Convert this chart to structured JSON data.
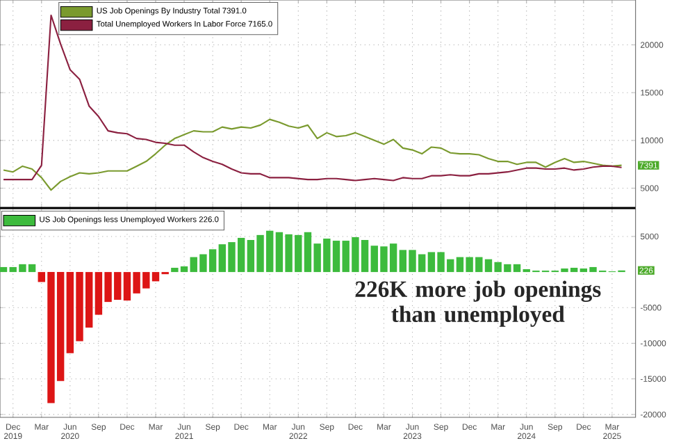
{
  "chart_data": [
    {
      "type": "line",
      "x": [
        "2019-11",
        "2019-12",
        "2020-01",
        "2020-02",
        "2020-03",
        "2020-04",
        "2020-05",
        "2020-06",
        "2020-07",
        "2020-08",
        "2020-09",
        "2020-10",
        "2020-11",
        "2020-12",
        "2021-01",
        "2021-02",
        "2021-03",
        "2021-04",
        "2021-05",
        "2021-06",
        "2021-07",
        "2021-08",
        "2021-09",
        "2021-10",
        "2021-11",
        "2021-12",
        "2022-01",
        "2022-02",
        "2022-03",
        "2022-04",
        "2022-05",
        "2022-06",
        "2022-07",
        "2022-08",
        "2022-09",
        "2022-10",
        "2022-11",
        "2022-12",
        "2023-01",
        "2023-02",
        "2023-03",
        "2023-04",
        "2023-05",
        "2023-06",
        "2023-07",
        "2023-08",
        "2023-09",
        "2023-10",
        "2023-11",
        "2023-12",
        "2024-01",
        "2024-02",
        "2024-03",
        "2024-04",
        "2024-05",
        "2024-06",
        "2024-07",
        "2024-08",
        "2024-09",
        "2024-10",
        "2024-11",
        "2024-12",
        "2025-01",
        "2025-02",
        "2025-03",
        "2025-04"
      ],
      "series": [
        {
          "name": "US Job Openings By Industry Total 7391.0",
          "color": "#7a9a2e",
          "values": [
            6900,
            6700,
            7300,
            7000,
            6100,
            4800,
            5700,
            6200,
            6600,
            6500,
            6600,
            6800,
            6800,
            6800,
            7300,
            7800,
            8600,
            9500,
            10200,
            10600,
            11000,
            10900,
            10900,
            11400,
            11200,
            11400,
            11300,
            11600,
            12200,
            11900,
            11500,
            11300,
            11600,
            10200,
            10800,
            10400,
            10500,
            10800,
            10400,
            10000,
            9600,
            10100,
            9200,
            9000,
            8600,
            9300,
            9200,
            8700,
            8600,
            8600,
            8500,
            8100,
            7800,
            7800,
            7500,
            7700,
            7700,
            7200,
            7700,
            8100,
            7700,
            7800,
            7600,
            7400,
            7300,
            7391
          ]
        },
        {
          "name": "Total Unemployed Workers In Labor Force 7165.0",
          "color": "#8b2040",
          "values": [
            5900,
            5900,
            5900,
            5900,
            7400,
            23100,
            20100,
            17400,
            16400,
            13600,
            12500,
            11000,
            10800,
            10700,
            10200,
            10100,
            9800,
            9700,
            9500,
            9500,
            8800,
            8200,
            7800,
            7500,
            7000,
            6600,
            6500,
            6500,
            6100,
            6100,
            6100,
            6000,
            5900,
            5900,
            6000,
            6000,
            5900,
            5800,
            5900,
            6000,
            5900,
            5800,
            6100,
            6000,
            6000,
            6300,
            6300,
            6400,
            6300,
            6300,
            6500,
            6500,
            6600,
            6700,
            6900,
            7100,
            7100,
            7000,
            7000,
            7100,
            6900,
            7000,
            7200,
            7300,
            7300,
            7165
          ]
        }
      ],
      "xlim": [
        "2019-10-20",
        "2025-05-15"
      ],
      "xticks": [
        {
          "value": "2019-12",
          "label": null
        },
        {
          "value": "2020-03",
          "label": null
        },
        {
          "value": "2020-06",
          "label": null
        },
        {
          "value": "2020-09",
          "label": null
        },
        {
          "value": "2020-12",
          "label": null
        },
        {
          "value": "2021-03",
          "label": null
        },
        {
          "value": "2021-06",
          "label": null
        },
        {
          "value": "2021-09",
          "label": null
        },
        {
          "value": "2021-12",
          "label": null
        },
        {
          "value": "2022-03",
          "label": null
        },
        {
          "value": "2022-06",
          "label": null
        },
        {
          "value": "2022-09",
          "label": null
        },
        {
          "value": "2022-12",
          "label": null
        },
        {
          "value": "2023-03",
          "label": null
        },
        {
          "value": "2023-06",
          "label": null
        },
        {
          "value": "2023-09",
          "label": null
        },
        {
          "value": "2023-12",
          "label": null
        },
        {
          "value": "2024-03",
          "label": null
        },
        {
          "value": "2024-06",
          "label": null
        },
        {
          "value": "2024-09",
          "label": null
        },
        {
          "value": "2024-12",
          "label": null
        },
        {
          "value": "2025-03",
          "label": null
        }
      ],
      "ylim": [
        3000,
        24700
      ],
      "yticks": [
        5000,
        10000,
        15000,
        20000
      ],
      "grid": true,
      "legend": "top left",
      "tick_labels": "y",
      "annotations": [
        {
          "text": "7391",
          "x": "2025-04",
          "y": 7391
        }
      ]
    },
    {
      "type": "bar",
      "x": [
        "2019-11",
        "2019-12",
        "2020-01",
        "2020-02",
        "2020-03",
        "2020-04",
        "2020-05",
        "2020-06",
        "2020-07",
        "2020-08",
        "2020-09",
        "2020-10",
        "2020-11",
        "2020-12",
        "2021-01",
        "2021-02",
        "2021-03",
        "2021-04",
        "2021-05",
        "2021-06",
        "2021-07",
        "2021-08",
        "2021-09",
        "2021-10",
        "2021-11",
        "2021-12",
        "2022-01",
        "2022-02",
        "2022-03",
        "2022-04",
        "2022-05",
        "2022-06",
        "2022-07",
        "2022-08",
        "2022-09",
        "2022-10",
        "2022-11",
        "2022-12",
        "2023-01",
        "2023-02",
        "2023-03",
        "2023-04",
        "2023-05",
        "2023-06",
        "2023-07",
        "2023-08",
        "2023-09",
        "2023-10",
        "2023-11",
        "2023-12",
        "2024-01",
        "2024-02",
        "2024-03",
        "2024-04",
        "2024-05",
        "2024-06",
        "2024-07",
        "2024-08",
        "2024-09",
        "2024-10",
        "2024-11",
        "2024-12",
        "2025-01",
        "2025-02",
        "2025-03",
        "2025-04"
      ],
      "series": [
        {
          "name": "US Job Openings less Unemployed Workers 226.0",
          "color": "#3dbb3d",
          "values": [
            700,
            700,
            1100,
            1100,
            -1400,
            -18400,
            -15300,
            -11400,
            -9700,
            -7800,
            -6000,
            -4200,
            -3900,
            -4000,
            -3000,
            -2300,
            -1300,
            -300,
            600,
            800,
            2100,
            2500,
            3200,
            3900,
            4200,
            4800,
            4500,
            5200,
            5800,
            5600,
            5300,
            5200,
            5600,
            4000,
            4700,
            4400,
            4400,
            4900,
            4500,
            3700,
            3600,
            4000,
            3100,
            3100,
            2500,
            2800,
            2800,
            1800,
            2100,
            2100,
            2100,
            1800,
            1400,
            1100,
            1100,
            400,
            200,
            200,
            200,
            500,
            600,
            500,
            700,
            200,
            100,
            226
          ],
          "colors": [
            "#3dbb3d",
            "#3dbb3d",
            "#3dbb3d",
            "#3dbb3d",
            "#dd1515",
            "#dd1515",
            "#dd1515",
            "#dd1515",
            "#dd1515",
            "#dd1515",
            "#dd1515",
            "#dd1515",
            "#dd1515",
            "#dd1515",
            "#dd1515",
            "#dd1515",
            "#dd1515",
            "#dd1515",
            "#3dbb3d",
            "#3dbb3d",
            "#3dbb3d",
            "#3dbb3d",
            "#3dbb3d",
            "#3dbb3d",
            "#3dbb3d",
            "#3dbb3d",
            "#3dbb3d",
            "#3dbb3d",
            "#3dbb3d",
            "#3dbb3d",
            "#3dbb3d",
            "#3dbb3d",
            "#3dbb3d",
            "#3dbb3d",
            "#3dbb3d",
            "#3dbb3d",
            "#3dbb3d",
            "#3dbb3d",
            "#3dbb3d",
            "#3dbb3d",
            "#3dbb3d",
            "#3dbb3d",
            "#3dbb3d",
            "#3dbb3d",
            "#3dbb3d",
            "#3dbb3d",
            "#3dbb3d",
            "#3dbb3d",
            "#3dbb3d",
            "#3dbb3d",
            "#3dbb3d",
            "#3dbb3d",
            "#3dbb3d",
            "#3dbb3d",
            "#3dbb3d",
            "#3dbb3d",
            "#3dbb3d",
            "#3dbb3d",
            "#3dbb3d",
            "#3dbb3d",
            "#3dbb3d",
            "#3dbb3d",
            "#3dbb3d",
            "#3dbb3d",
            "#3dbb3d",
            "#3dbb3d"
          ]
        }
      ],
      "xlim": [
        "2019-10-20",
        "2025-05-15"
      ],
      "xticks": [
        {
          "value": "2019-12",
          "label": "Dec 2019"
        },
        {
          "value": "2020-03",
          "label": "Mar"
        },
        {
          "value": "2020-06",
          "label": "Jun 2020"
        },
        {
          "value": "2020-09",
          "label": "Sep"
        },
        {
          "value": "2020-12",
          "label": "Dec"
        },
        {
          "value": "2021-03",
          "label": "Mar"
        },
        {
          "value": "2021-06",
          "label": "Jun 2021"
        },
        {
          "value": "2021-09",
          "label": "Sep"
        },
        {
          "value": "2021-12",
          "label": "Dec"
        },
        {
          "value": "2022-03",
          "label": "Mar"
        },
        {
          "value": "2022-06",
          "label": "Jun 2022"
        },
        {
          "value": "2022-09",
          "label": "Sep"
        },
        {
          "value": "2022-12",
          "label": "Dec"
        },
        {
          "value": "2023-03",
          "label": "Mar"
        },
        {
          "value": "2023-06",
          "label": "Jun 2023"
        },
        {
          "value": "2023-09",
          "label": "Sep"
        },
        {
          "value": "2023-12",
          "label": "Dec"
        },
        {
          "value": "2024-03",
          "label": "Mar"
        },
        {
          "value": "2024-06",
          "label": "Jun 2024"
        },
        {
          "value": "2024-09",
          "label": "Sep"
        },
        {
          "value": "2024-12",
          "label": "Dec"
        },
        {
          "value": "2025-03",
          "label": "Mar 2025"
        }
      ],
      "ylim": [
        -20400,
        8900
      ],
      "yticks": [
        -20000,
        -15000,
        -10000,
        -5000,
        5000
      ],
      "grid": true,
      "legend": "top left",
      "annotations": [
        {
          "text": "226",
          "x": "2025-04",
          "y": 226
        },
        {
          "text": "226K more job openings than unemployed",
          "x": "2025-04",
          "y": 226
        }
      ]
    }
  ]
}
